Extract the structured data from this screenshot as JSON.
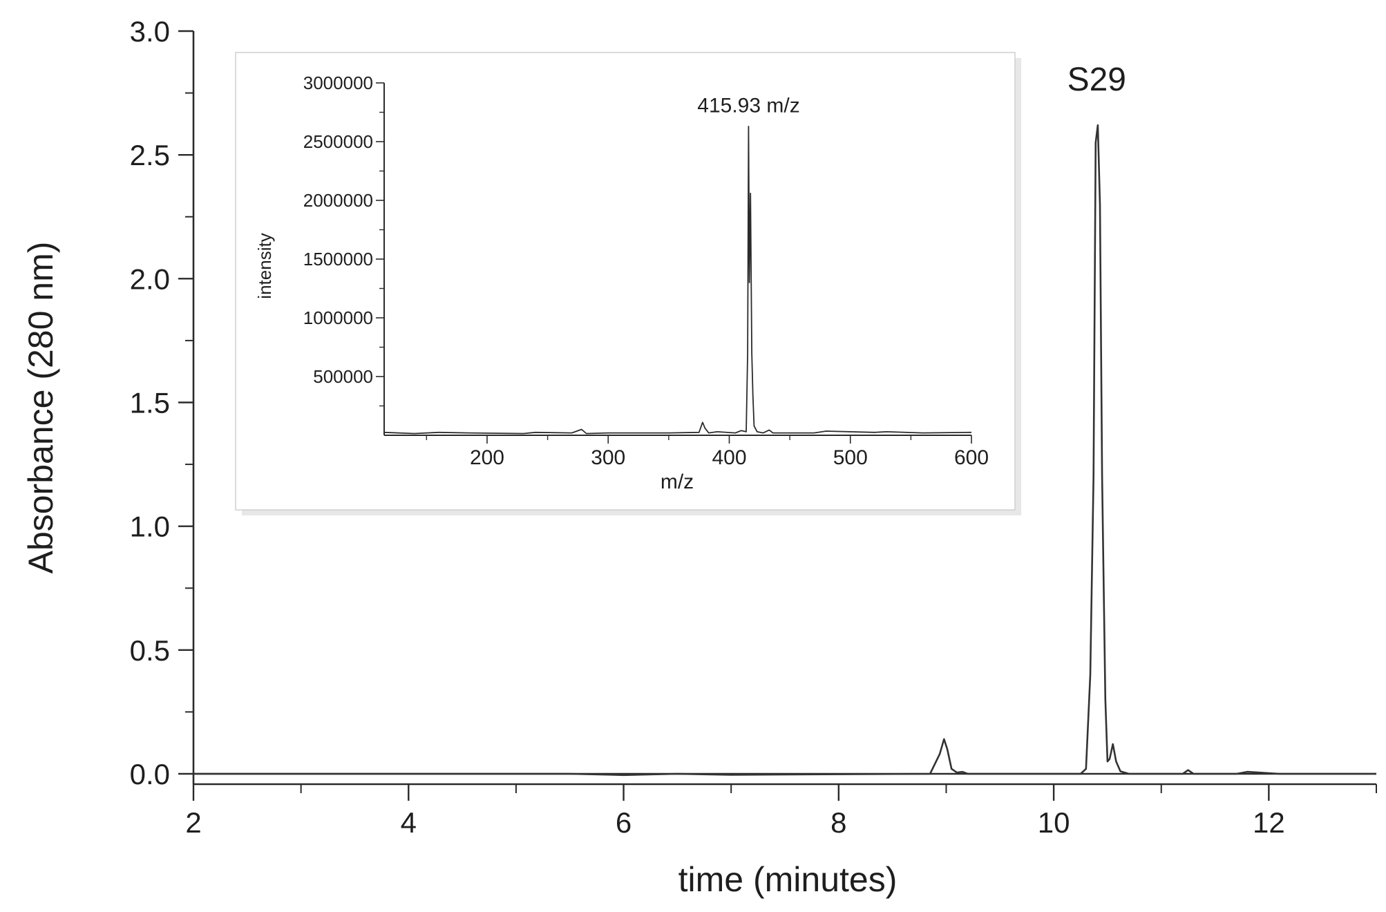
{
  "chart_data": [
    {
      "type": "line",
      "title": "",
      "xlabel": "time (minutes)",
      "ylabel": "Absorbance (280 nm)",
      "xlim": [
        2,
        13
      ],
      "ylim": [
        0,
        3.0
      ],
      "x_ticks": [
        2,
        4,
        6,
        8,
        10,
        12
      ],
      "y_ticks": [
        "0.0",
        "0.5",
        "1.0",
        "1.5",
        "2.0",
        "2.5",
        "3.0"
      ],
      "grid": false,
      "annotations": [
        {
          "text": "S29",
          "x": 10.4,
          "y": 2.76
        }
      ],
      "series": [
        {
          "x": [
            2.0,
            5.5,
            6.0,
            6.5,
            7.0,
            8.85,
            8.94,
            8.98,
            9.01,
            9.05,
            9.1,
            9.15,
            9.2,
            10.25,
            10.3,
            10.34,
            10.37,
            10.39,
            10.41,
            10.43,
            10.45,
            10.48,
            10.5,
            10.52,
            10.55,
            10.58,
            10.62,
            10.7,
            11.2,
            11.25,
            11.3,
            11.7,
            11.8,
            12.1,
            13.0
          ],
          "y": [
            0.0,
            0.0,
            -0.005,
            0.0,
            -0.004,
            0.0,
            0.08,
            0.14,
            0.1,
            0.02,
            0.005,
            0.008,
            0.0,
            0.0,
            0.02,
            0.4,
            1.2,
            2.55,
            2.62,
            2.3,
            1.2,
            0.3,
            0.05,
            0.06,
            0.12,
            0.05,
            0.01,
            0.0,
            0.0,
            0.015,
            0.0,
            0.0,
            0.008,
            0.0,
            0.0
          ]
        }
      ]
    },
    {
      "type": "line",
      "title": "",
      "xlabel": "m/z",
      "ylabel": "intensity",
      "xlim": [
        115,
        600
      ],
      "ylim": [
        0,
        3000000
      ],
      "x_ticks": [
        200,
        300,
        400,
        500,
        600
      ],
      "y_ticks": [
        "500000",
        "1000000",
        "1500000",
        "2000000",
        "2500000",
        "3000000"
      ],
      "grid": false,
      "annotations": [
        {
          "text": "415.93 m/z",
          "x": 416,
          "y": 2750000
        }
      ],
      "series": [
        {
          "x": [
            115,
            140,
            160,
            185,
            230,
            240,
            270,
            278,
            282,
            300,
            350,
            375,
            378,
            380,
            383,
            390,
            405,
            410,
            414,
            415.2,
            415.9,
            416.6,
            417.5,
            418.6,
            419.5,
            420.5,
            423,
            428,
            433,
            436,
            440,
            470,
            480,
            520,
            530,
            560,
            600
          ],
          "y": [
            25000,
            15000,
            25000,
            20000,
            15000,
            25000,
            20000,
            50000,
            15000,
            20000,
            20000,
            25000,
            110000,
            60000,
            20000,
            30000,
            20000,
            40000,
            30000,
            700000,
            2630000,
            1300000,
            2060000,
            700000,
            340000,
            80000,
            30000,
            20000,
            45000,
            20000,
            20000,
            20000,
            35000,
            25000,
            30000,
            20000,
            25000
          ]
        }
      ]
    }
  ]
}
